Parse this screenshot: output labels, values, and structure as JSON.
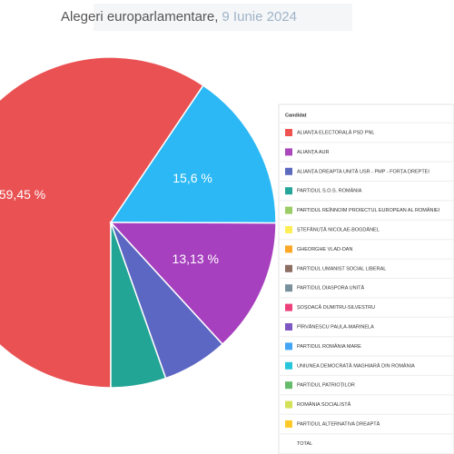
{
  "chart_data": {
    "type": "pie",
    "title": "Alegeri europarlamentare,",
    "subtitle": "9 Iunie 2024",
    "values": [
      59.45,
      15.6,
      13.13,
      6.42,
      5.4
    ],
    "value_labels": [
      "59,45 %",
      "15,6 %",
      "13,13 %",
      null,
      null
    ],
    "colors": [
      "#ea5153",
      "#2bb8f4",
      "#a640be",
      "#5b67c2",
      "#23a596"
    ],
    "legend_header": "Candidat",
    "legend": [
      {
        "name": "ALIANȚA ELECTORALĂ PSD PNL",
        "color": "#ef5350"
      },
      {
        "name": "ALIANȚA AUR",
        "color": "#ab47bc"
      },
      {
        "name": "ALIANȚA DREAPTA UNITĂ USR - PMP - FORȚA DREPTEI",
        "color": "#5c6bc0"
      },
      {
        "name": "PARTIDUL S.O.S. ROMÂNIA",
        "color": "#26a69a"
      },
      {
        "name": "PARTIDUL REÎNNOIM PROIECTUL EUROPEAN AL ROMÂNIEI",
        "color": "#9ccc65"
      },
      {
        "name": "ȘTEFĂNUȚĂ NICOLAE-BOGDĂNEL",
        "color": "#ffee58"
      },
      {
        "name": "GHEORGHE VLAD-DAN",
        "color": "#ffa726"
      },
      {
        "name": "PARTIDUL UMANIST SOCIAL LIBERAL",
        "color": "#8d6e63"
      },
      {
        "name": "PARTIDUL DIASPORA UNITĂ",
        "color": "#78909c"
      },
      {
        "name": "ȘOȘOACĂ DUMITRU-SILVESTRU",
        "color": "#ec407a"
      },
      {
        "name": "PÎRVĂNESCU PAULA-MARINELA",
        "color": "#7e57c2"
      },
      {
        "name": "PARTIDUL ROMÂNIA MARE",
        "color": "#42a5f5"
      },
      {
        "name": "UNIUNEA DEMOCRATĂ MAGHIARĂ DIN ROMÂNIA",
        "color": "#26c6da"
      },
      {
        "name": "PARTIDUL PATRIOȚILOR",
        "color": "#66bb6a"
      },
      {
        "name": "ROMÂNIA SOCIALISTĂ",
        "color": "#d4e157"
      },
      {
        "name": "PARTIDUL ALTERNATIVA DREAPTĂ",
        "color": "#ffca28"
      }
    ],
    "total_label": "TOTAL"
  }
}
